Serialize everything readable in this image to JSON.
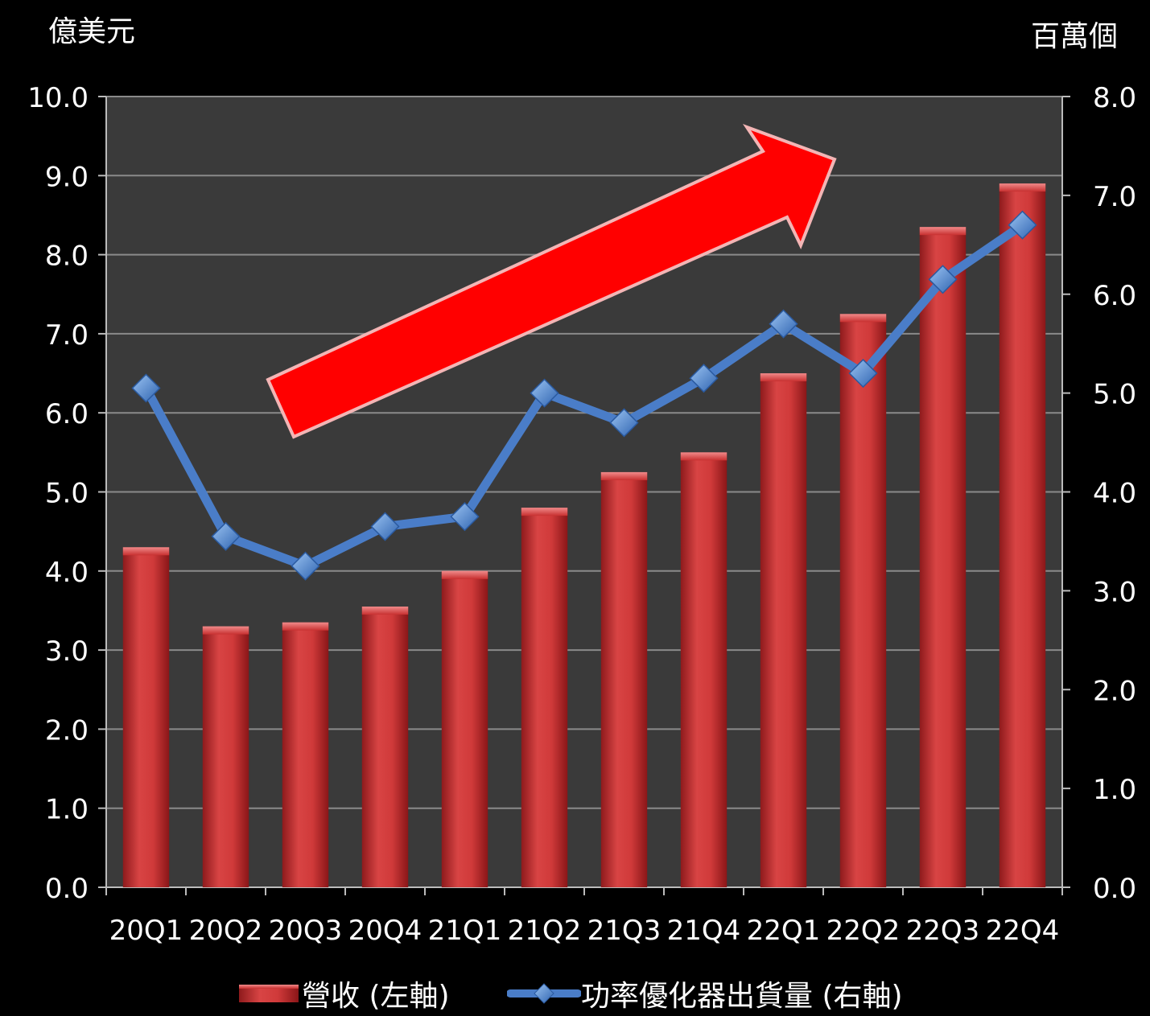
{
  "chart_data": {
    "type": "bar",
    "left_unit": "億美元",
    "right_unit": "百萬個",
    "categories": [
      "20Q1",
      "20Q2",
      "20Q3",
      "20Q4",
      "21Q1",
      "21Q2",
      "21Q3",
      "21Q4",
      "22Q1",
      "22Q2",
      "22Q3",
      "22Q4"
    ],
    "y_left": {
      "range": [
        0,
        10
      ],
      "ticks": [
        "0.0",
        "1.0",
        "2.0",
        "3.0",
        "4.0",
        "5.0",
        "6.0",
        "7.0",
        "8.0",
        "9.0",
        "10.0"
      ]
    },
    "y_right": {
      "range": [
        0,
        8
      ],
      "ticks": [
        "0.0",
        "1.0",
        "2.0",
        "3.0",
        "4.0",
        "5.0",
        "6.0",
        "7.0",
        "8.0"
      ]
    },
    "series": [
      {
        "name": "營收 (左軸)",
        "type": "bar",
        "axis": "left",
        "color": "#c0282a",
        "values": [
          4.3,
          3.3,
          3.35,
          3.55,
          4.0,
          4.8,
          5.25,
          5.5,
          6.5,
          7.25,
          8.35,
          8.9
        ]
      },
      {
        "name": "功率優化器出貨量 (右軸)",
        "type": "line",
        "axis": "right",
        "color": "#4a7dc8",
        "values": [
          5.05,
          3.55,
          3.25,
          3.65,
          3.75,
          5.0,
          4.7,
          5.15,
          5.7,
          5.2,
          6.15,
          6.7
        ]
      }
    ],
    "grid": true,
    "legend_position": "bottom",
    "annotation": "upward-trend-arrow",
    "plot_background": "#3a3a3a"
  }
}
